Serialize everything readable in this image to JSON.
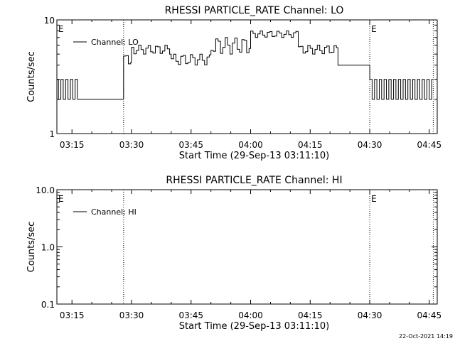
{
  "footer": {
    "timestamp": "22-Oct-2021 14:19"
  },
  "chart_data": [
    {
      "type": "line",
      "title": "RHESSI PARTICLE_RATE Channel: LO",
      "xlabel": "Start Time (29-Sep-13 03:11:10)",
      "ylabel": "Counts/sec",
      "yscale": "log",
      "ylim": [
        1,
        10
      ],
      "yticks": [
        "1",
        "10"
      ],
      "xlim_minutes_of_day": [
        191.2,
        287.0
      ],
      "xticks": [
        "03:15",
        "03:30",
        "03:45",
        "04:00",
        "04:15",
        "04:30",
        "04:45"
      ],
      "event_markers": [
        {
          "label": "E",
          "time": "03:11"
        },
        {
          "label": "E",
          "time": "04:30"
        }
      ],
      "vlines": [
        "03:28",
        "04:30",
        "04:46"
      ],
      "legend": {
        "entries": [
          "Channel: LO"
        ],
        "placement": "top-left"
      },
      "series": [
        {
          "name": "Channel: LO",
          "segments": [
            {
              "time": "03:11-03:17",
              "level": "2-3 alternating"
            },
            {
              "time": "03:17-03:28",
              "level": "2"
            },
            {
              "time": "03:28-03:30",
              "level": "4-5"
            },
            {
              "time": "03:30-03:40",
              "level": "5-6"
            },
            {
              "time": "03:40-03:50",
              "level": "4-5"
            },
            {
              "time": "03:50-04:00",
              "level": "5-7"
            },
            {
              "time": "04:00-04:12",
              "level": "7-8"
            },
            {
              "time": "04:12-04:22",
              "level": "5-6"
            },
            {
              "time": "04:22-04:30",
              "level": "4"
            },
            {
              "time": "04:30-04:46",
              "level": "2-3 alternating"
            }
          ]
        }
      ]
    },
    {
      "type": "line",
      "title": "RHESSI PARTICLE_RATE Channel: HI",
      "xlabel": "Start Time (29-Sep-13 03:11:10)",
      "ylabel": "Counts/sec",
      "yscale": "log",
      "ylim": [
        0.1,
        10.0
      ],
      "yticks": [
        "0.1",
        "1.0",
        "10.0"
      ],
      "xlim_minutes_of_day": [
        191.2,
        287.0
      ],
      "xticks": [
        "03:15",
        "03:30",
        "03:45",
        "04:00",
        "04:15",
        "04:30",
        "04:45"
      ],
      "event_markers": [
        {
          "label": "E",
          "time": "03:11"
        },
        {
          "label": "E",
          "time": "04:30"
        }
      ],
      "vlines": [
        "03:28",
        "04:30",
        "04:46"
      ],
      "legend": {
        "entries": [
          "Channel: HI"
        ],
        "placement": "top-left"
      },
      "series": [
        {
          "name": "Channel: HI",
          "segments": []
        }
      ]
    }
  ]
}
